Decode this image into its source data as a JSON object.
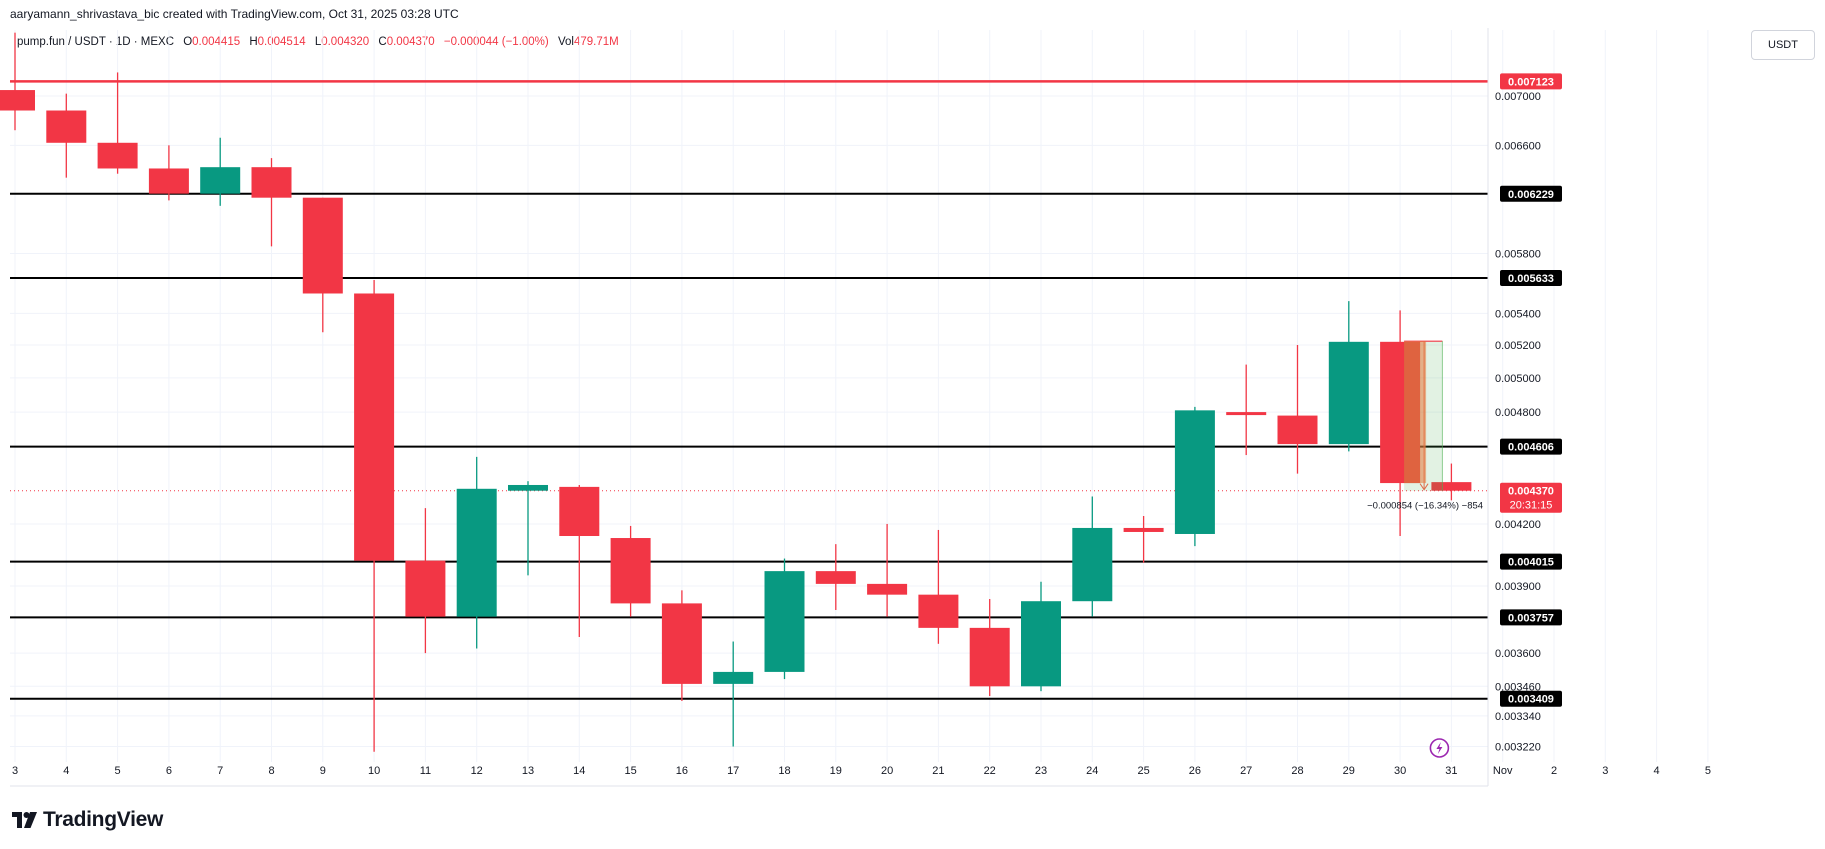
{
  "header": {
    "creator": "aaryamann_shrivastava_bic created with TradingView.com, Oct 31, 2025 03:28 UTC"
  },
  "legend": {
    "symbol": "pump.fun / USDT · 1D · MEXC",
    "open_label": "O",
    "open": "0.004415",
    "high_label": "H",
    "high": "0.004514",
    "low_label": "L",
    "low": "0.004320",
    "close_label": "C",
    "close": "0.004370",
    "change": "−0.000044 (−1.00%)",
    "vol_label": "Vol",
    "vol": "479.71M"
  },
  "currency_button": "USDT",
  "brand": {
    "name": "TradingView",
    "icon": "tradingview-logo-icon"
  },
  "colors": {
    "up": "#089981",
    "down": "#f23645",
    "level": "#000000",
    "resistance": "#f23645",
    "grid": "#f0f3fa"
  },
  "chart_data": {
    "type": "candlestick",
    "y_scale": "log",
    "ylim": [
      0.00318,
      0.00752
    ],
    "y_ticks": [
      "0.007000",
      "0.006600",
      "0.005800",
      "0.005400",
      "0.005200",
      "0.005000",
      "0.004800",
      "0.004200",
      "0.003900",
      "0.003600",
      "0.003460",
      "0.003340",
      "0.003220"
    ],
    "x_tick_labels": [
      "3",
      "4",
      "5",
      "6",
      "7",
      "8",
      "9",
      "10",
      "11",
      "12",
      "13",
      "14",
      "15",
      "16",
      "17",
      "18",
      "19",
      "20",
      "21",
      "22",
      "23",
      "24",
      "25",
      "26",
      "27",
      "28",
      "29",
      "30",
      "31",
      "Nov",
      "2",
      "3",
      "4",
      "5"
    ],
    "candles": [
      {
        "date": "3",
        "open": 0.00705,
        "high": 0.00755,
        "low": 0.00672,
        "close": 0.00688
      },
      {
        "date": "4",
        "open": 0.00688,
        "high": 0.00702,
        "low": 0.00635,
        "close": 0.00662
      },
      {
        "date": "5",
        "open": 0.00662,
        "high": 0.0072,
        "low": 0.00638,
        "close": 0.00642
      },
      {
        "date": "6",
        "open": 0.00642,
        "high": 0.0066,
        "low": 0.00618,
        "close": 0.00623
      },
      {
        "date": "7",
        "open": 0.00623,
        "high": 0.00666,
        "low": 0.00614,
        "close": 0.00643
      },
      {
        "date": "8",
        "open": 0.00643,
        "high": 0.0065,
        "low": 0.00585,
        "close": 0.0062
      },
      {
        "date": "9",
        "open": 0.0062,
        "high": 0.0062,
        "low": 0.00528,
        "close": 0.00553
      },
      {
        "date": "10",
        "open": 0.00553,
        "high": 0.00562,
        "low": 0.0032,
        "close": 0.00402
      },
      {
        "date": "11",
        "open": 0.00402,
        "high": 0.00428,
        "low": 0.0036,
        "close": 0.00376
      },
      {
        "date": "12",
        "open": 0.00376,
        "high": 0.00455,
        "low": 0.00362,
        "close": 0.00438
      },
      {
        "date": "13",
        "open": 0.00437,
        "high": 0.00442,
        "low": 0.00395,
        "close": 0.0044
      },
      {
        "date": "14",
        "open": 0.00439,
        "high": 0.0044,
        "low": 0.00367,
        "close": 0.00414
      },
      {
        "date": "15",
        "open": 0.00413,
        "high": 0.00419,
        "low": 0.00376,
        "close": 0.00382
      },
      {
        "date": "16",
        "open": 0.00382,
        "high": 0.00388,
        "low": 0.0034,
        "close": 0.00347
      },
      {
        "date": "17",
        "open": 0.00347,
        "high": 0.00365,
        "low": 0.00322,
        "close": 0.00352
      },
      {
        "date": "18",
        "open": 0.00352,
        "high": 0.00403,
        "low": 0.00349,
        "close": 0.00397
      },
      {
        "date": "19",
        "open": 0.00397,
        "high": 0.0041,
        "low": 0.00379,
        "close": 0.00391
      },
      {
        "date": "20",
        "open": 0.00391,
        "high": 0.0042,
        "low": 0.00376,
        "close": 0.00386
      },
      {
        "date": "21",
        "open": 0.00386,
        "high": 0.00417,
        "low": 0.00364,
        "close": 0.00371
      },
      {
        "date": "22",
        "open": 0.00371,
        "high": 0.00384,
        "low": 0.00342,
        "close": 0.00346
      },
      {
        "date": "23",
        "open": 0.00346,
        "high": 0.00392,
        "low": 0.00344,
        "close": 0.00383
      },
      {
        "date": "24",
        "open": 0.00383,
        "high": 0.00434,
        "low": 0.00376,
        "close": 0.00418
      },
      {
        "date": "25",
        "open": 0.00418,
        "high": 0.00424,
        "low": 0.00401,
        "close": 0.00416
      },
      {
        "date": "26",
        "open": 0.00415,
        "high": 0.00483,
        "low": 0.00409,
        "close": 0.00481
      },
      {
        "date": "27",
        "open": 0.0048,
        "high": 0.00508,
        "low": 0.00456,
        "close": 0.00479
      },
      {
        "date": "28",
        "open": 0.00478,
        "high": 0.0052,
        "low": 0.00446,
        "close": 0.00462
      },
      {
        "date": "29",
        "open": 0.00462,
        "high": 0.00548,
        "low": 0.00458,
        "close": 0.00522
      },
      {
        "date": "30",
        "open": 0.00522,
        "high": 0.00542,
        "low": 0.00414,
        "close": 0.00441
      },
      {
        "date": "31",
        "open": 0.004415,
        "high": 0.004514,
        "low": 0.00432,
        "close": 0.00437
      }
    ],
    "horizontal_levels": [
      {
        "value": 0.007123,
        "label": "0.007123",
        "color": "#f23645"
      },
      {
        "value": 0.006229,
        "label": "0.006229",
        "color": "#000000"
      },
      {
        "value": 0.005633,
        "label": "0.005633",
        "color": "#000000"
      },
      {
        "value": 0.004606,
        "label": "0.004606",
        "color": "#000000"
      },
      {
        "value": 0.004015,
        "label": "0.004015",
        "color": "#000000"
      },
      {
        "value": 0.003757,
        "label": "0.003757",
        "color": "#000000"
      },
      {
        "value": 0.003409,
        "label": "0.003409",
        "color": "#000000"
      }
    ],
    "current_price": {
      "value": 0.00437,
      "label": "0.004370",
      "countdown": "20:31:15",
      "color": "#f23645"
    },
    "measure": {
      "from_date": "30",
      "to_date": "31",
      "from_value": 0.005224,
      "to_value": 0.00437,
      "label": "−0.000854 (−16.34%) −854"
    },
    "event_icon": {
      "date": "31",
      "name": "lightning-event-icon"
    }
  }
}
